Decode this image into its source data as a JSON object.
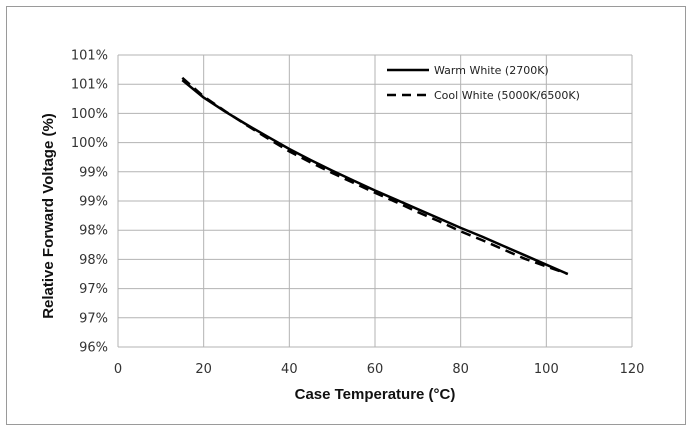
{
  "chart_data": {
    "type": "line",
    "title": "",
    "xlabel": "Case Temperature (°C)",
    "ylabel": "Relative Forward Voltage (%)",
    "xlim": [
      0,
      120
    ],
    "ylim": [
      96,
      101
    ],
    "x_ticks": [
      "0",
      "20",
      "40",
      "60",
      "80",
      "100",
      "120"
    ],
    "y_ticks": [
      "96%",
      "97%",
      "97%",
      "98%",
      "98%",
      "99%",
      "99%",
      "100%",
      "100%",
      "101%",
      "101%"
    ],
    "grid": true,
    "legend_position": "top-right",
    "series": [
      {
        "name": "Warm White (2700K)",
        "style": "solid",
        "color": "#000000",
        "x": [
          15,
          20,
          25,
          30,
          35,
          40,
          45,
          50,
          55,
          60,
          65,
          70,
          75,
          80,
          85,
          90,
          95,
          100,
          105
        ],
        "y": [
          100.57,
          100.27,
          100.03,
          99.81,
          99.6,
          99.39,
          99.2,
          99.02,
          98.85,
          98.68,
          98.52,
          98.36,
          98.2,
          98.04,
          97.89,
          97.73,
          97.57,
          97.41,
          97.25
        ]
      },
      {
        "name": "Cool White (5000K/6500K)",
        "style": "dashed",
        "color": "#000000",
        "x": [
          15,
          20,
          25,
          30,
          35,
          40,
          45,
          50,
          55,
          60,
          65,
          70,
          75,
          80,
          85,
          90,
          95,
          100,
          105
        ],
        "y": [
          100.61,
          100.29,
          100.04,
          99.8,
          99.57,
          99.35,
          99.16,
          98.98,
          98.81,
          98.64,
          98.48,
          98.31,
          98.15,
          97.98,
          97.83,
          97.67,
          97.51,
          97.38,
          97.25
        ]
      }
    ]
  }
}
